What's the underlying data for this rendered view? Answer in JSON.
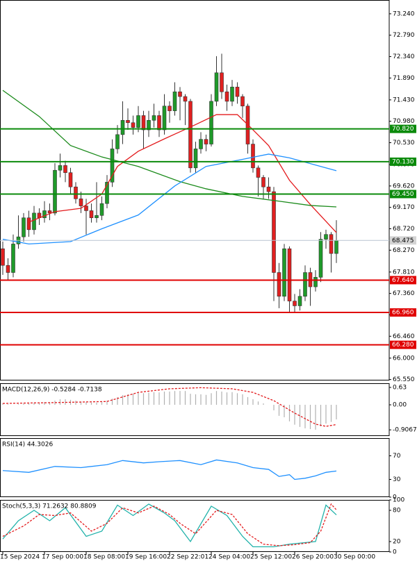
{
  "chart_data": [
    {
      "type": "candlestick",
      "open": [
        68.3,
        67.95,
        67.8,
        68.4,
        68.55,
        68.95,
        68.7,
        69.05,
        68.95,
        69.1,
        69.05,
        69.95,
        70.05,
        69.9,
        69.6,
        69.35,
        69.2,
        69.1,
        68.95,
        69.0,
        69.25,
        69.7,
        70.4,
        70.7,
        71.0,
        70.95,
        70.85,
        71.1,
        70.8,
        71.0,
        71.1,
        70.8,
        71.3,
        71.2,
        71.6,
        71.5,
        71.4,
        70.0,
        70.4,
        70.6,
        70.5,
        71.4,
        72.0,
        71.6,
        71.4,
        71.7,
        71.5,
        71.3,
        70.5,
        70.0,
        69.8,
        69.6,
        69.5,
        67.8,
        67.3,
        68.3,
        67.2,
        67.1,
        67.3,
        67.8,
        67.5,
        67.7,
        68.5,
        68.6,
        68.2
      ],
      "high": [
        68.45,
        68.1,
        68.6,
        69.0,
        69.05,
        69.1,
        69.2,
        69.15,
        69.3,
        69.25,
        70.1,
        70.3,
        70.15,
        70.0,
        69.7,
        69.5,
        69.35,
        69.25,
        69.7,
        69.4,
        69.85,
        70.6,
        70.9,
        71.4,
        71.25,
        71.1,
        71.3,
        71.2,
        71.2,
        71.35,
        71.2,
        71.55,
        71.4,
        71.8,
        71.7,
        71.55,
        71.45,
        70.55,
        70.75,
        70.7,
        71.55,
        72.35,
        72.4,
        71.75,
        71.85,
        71.8,
        71.55,
        71.35,
        70.6,
        70.05,
        69.85,
        69.8,
        69.6,
        68.0,
        68.4,
        68.35,
        67.35,
        67.45,
        67.95,
        67.9,
        67.85,
        68.65,
        68.7,
        68.65,
        68.9
      ],
      "low": [
        67.75,
        67.65,
        67.7,
        68.3,
        68.45,
        68.55,
        68.6,
        68.8,
        68.85,
        68.9,
        69.0,
        69.8,
        69.7,
        69.45,
        69.25,
        69.05,
        68.6,
        68.85,
        68.85,
        68.9,
        69.15,
        69.6,
        70.3,
        70.5,
        70.8,
        70.7,
        70.75,
        70.4,
        70.65,
        70.85,
        70.65,
        70.7,
        70.95,
        71.1,
        71.0,
        70.9,
        69.9,
        69.9,
        70.3,
        70.35,
        70.45,
        71.3,
        71.45,
        71.2,
        71.3,
        71.35,
        71.05,
        70.3,
        69.9,
        69.4,
        69.35,
        69.35,
        67.2,
        67.05,
        67.2,
        66.95,
        66.95,
        67.0,
        67.2,
        67.1,
        67.4,
        67.6,
        68.3,
        67.8,
        68.0
      ],
      "close": [
        67.95,
        67.8,
        68.4,
        68.55,
        68.95,
        68.7,
        69.05,
        68.95,
        69.1,
        69.05,
        69.95,
        70.05,
        69.9,
        69.6,
        69.35,
        69.2,
        69.1,
        68.95,
        69.0,
        69.25,
        69.7,
        70.4,
        70.7,
        71.0,
        70.95,
        70.85,
        71.1,
        70.8,
        71.0,
        71.1,
        70.8,
        71.3,
        71.2,
        71.6,
        71.5,
        71.4,
        70.0,
        70.4,
        70.6,
        70.5,
        71.4,
        72.0,
        71.6,
        71.4,
        71.7,
        71.5,
        71.3,
        70.5,
        70.0,
        69.8,
        69.6,
        69.5,
        67.8,
        67.3,
        68.3,
        67.2,
        67.1,
        67.3,
        67.8,
        67.5,
        67.7,
        68.5,
        68.6,
        68.2,
        68.475
      ],
      "up_color": "#1f9a2a",
      "down_color": "#e02020",
      "series": [
        {
          "color": "#e31a1c",
          "x": [
            5,
            10,
            15,
            19,
            22,
            26,
            31,
            37,
            41,
            45,
            47,
            51,
            55,
            59,
            64
          ],
          "values": [
            68.86,
            69.08,
            69.15,
            69.45,
            70.03,
            70.35,
            70.61,
            70.91,
            71.12,
            71.12,
            70.91,
            70.47,
            69.74,
            69.23,
            68.64
          ]
        },
        {
          "color": "#1a8a1a",
          "x": [
            0,
            7,
            13,
            19,
            26,
            34,
            39,
            46,
            53,
            59,
            64
          ],
          "values": [
            71.63,
            71.08,
            70.47,
            70.23,
            70.03,
            69.71,
            69.56,
            69.4,
            69.3,
            69.21,
            69.18
          ]
        },
        {
          "color": "#1e90ff",
          "x": [
            0,
            5,
            13,
            19,
            26,
            33,
            39,
            46,
            51,
            55,
            61,
            64
          ],
          "values": [
            68.5,
            68.4,
            68.45,
            68.72,
            69.01,
            69.62,
            70.03,
            70.18,
            70.29,
            70.21,
            70.03,
            69.94
          ]
        }
      ],
      "levels": [
        {
          "value": 70.82,
          "label": "70.820",
          "color": "#0a8a0a"
        },
        {
          "value": 70.13,
          "label": "70.130",
          "color": "#0a8a0a"
        },
        {
          "value": 69.45,
          "label": "69.450",
          "color": "#0a8a0a"
        },
        {
          "value": 67.64,
          "label": "67.640",
          "color": "#e00000"
        },
        {
          "value": 66.96,
          "label": "66.960",
          "color": "#e00000"
        },
        {
          "value": 66.28,
          "label": "66.280",
          "color": "#e00000"
        }
      ],
      "last_price": {
        "value": 68.475,
        "label": "68.475"
      },
      "ylim": [
        65.53,
        73.53
      ],
      "yticks": [
        {
          "value": 73.24,
          "label": "73.240"
        },
        {
          "value": 72.79,
          "label": "72.790"
        },
        {
          "value": 72.34,
          "label": "72.340"
        },
        {
          "value": 71.89,
          "label": "71.890"
        },
        {
          "value": 71.43,
          "label": "71.430"
        },
        {
          "value": 70.98,
          "label": "70.980"
        },
        {
          "value": 70.53,
          "label": "70.530"
        },
        {
          "value": 70.07,
          "label": "70.070"
        },
        {
          "value": 69.62,
          "label": "69.620"
        },
        {
          "value": 69.17,
          "label": "69.170"
        },
        {
          "value": 68.72,
          "label": "68.720"
        },
        {
          "value": 68.27,
          "label": "68.270"
        },
        {
          "value": 67.81,
          "label": "67.810"
        },
        {
          "value": 67.36,
          "label": "67.360"
        },
        {
          "value": 66.91,
          "label": "66.910"
        },
        {
          "value": 66.46,
          "label": "66.460"
        },
        {
          "value": 66.0,
          "label": "66.000"
        },
        {
          "value": 65.55,
          "label": "65.550"
        }
      ],
      "xticks": [
        {
          "value": 0,
          "label": "15 Sep 2024"
        },
        {
          "value": 8,
          "label": "17 Sep 00:00"
        },
        {
          "value": 16,
          "label": "18 Sep 08:00"
        },
        {
          "value": 24,
          "label": "19 Sep 16:00"
        },
        {
          "value": 32,
          "label": "22 Sep 22:01"
        },
        {
          "value": 40,
          "label": "24 Sep 04:00"
        },
        {
          "value": 48,
          "label": "25 Sep 12:00"
        },
        {
          "value": 56,
          "label": "26 Sep 20:00"
        },
        {
          "value": 64,
          "label": "30 Sep 00:00"
        }
      ]
    },
    {
      "type": "bar",
      "title": "MACD(12,26,9) -0.5284 -0.7138",
      "color": "#b0b0b0",
      "values": [
        0.05,
        0.02,
        0.0,
        0.02,
        0.05,
        0.05,
        0.08,
        0.08,
        0.1,
        0.1,
        0.15,
        0.2,
        0.2,
        0.18,
        0.15,
        0.12,
        0.1,
        0.08,
        0.08,
        0.1,
        0.15,
        0.22,
        0.28,
        0.35,
        0.38,
        0.4,
        0.43,
        0.42,
        0.44,
        0.46,
        0.45,
        0.48,
        0.48,
        0.5,
        0.5,
        0.5,
        0.4,
        0.38,
        0.38,
        0.36,
        0.42,
        0.5,
        0.48,
        0.45,
        0.46,
        0.42,
        0.38,
        0.28,
        0.2,
        0.12,
        0.05,
        0.0,
        -0.2,
        -0.4,
        -0.45,
        -0.6,
        -0.72,
        -0.8,
        -0.85,
        -0.88,
        -0.9,
        -0.78,
        -0.68,
        -0.62,
        -0.5284
      ],
      "series": [
        {
          "color": "#e31a1c",
          "line_style": "dashed",
          "x": [
            0,
            10,
            20,
            26,
            32,
            38,
            44,
            48,
            52,
            56,
            60,
            62,
            64
          ],
          "values": [
            0.05,
            0.08,
            0.12,
            0.45,
            0.58,
            0.62,
            0.58,
            0.45,
            0.15,
            -0.3,
            -0.7,
            -0.78,
            -0.7138
          ]
        }
      ],
      "ylim": [
        -1.13,
        0.78
      ],
      "yticks": [
        0.63,
        {
          "value": 0,
          "label": "0.00"
        },
        -0.9067
      ]
    },
    {
      "type": "line",
      "title": "RSI(14) 44.3026",
      "series": [
        {
          "color": "#1e90ff",
          "line_style": "solid",
          "x": [
            0,
            5,
            10,
            15,
            20,
            23,
            27,
            30,
            34,
            38,
            41,
            45,
            48,
            51,
            53,
            55,
            56,
            58,
            60,
            62,
            64
          ],
          "values": [
            45,
            42,
            52,
            50,
            55,
            62,
            58,
            60,
            62,
            55,
            63,
            58,
            50,
            47,
            35,
            38,
            30,
            32,
            36,
            42,
            44.3026
          ]
        }
      ],
      "ylim": [
        0,
        100
      ],
      "yticks": [
        70,
        30,
        0
      ]
    },
    {
      "type": "line",
      "title": "Stoch(5,3,3) 71.2632 80.8809",
      "series": [
        {
          "color": "#20b2aa",
          "line_style": "solid",
          "x": [
            0,
            3,
            6,
            9,
            12,
            16,
            19,
            22,
            25,
            28,
            31,
            33,
            36,
            40,
            43,
            46,
            48,
            52,
            55,
            58,
            60,
            62,
            64
          ],
          "values": [
            25,
            60,
            80,
            60,
            85,
            30,
            40,
            90,
            70,
            92,
            75,
            60,
            20,
            88,
            70,
            30,
            10,
            10,
            15,
            18,
            20,
            90,
            71.2632
          ]
        },
        {
          "color": "#e31a1c",
          "line_style": "dashed",
          "x": [
            0,
            4,
            7,
            10,
            13,
            17,
            20,
            23,
            26,
            29,
            32,
            34,
            37,
            41,
            44,
            47,
            50,
            53,
            56,
            59,
            61,
            63,
            64
          ],
          "values": [
            30,
            50,
            72,
            70,
            75,
            40,
            55,
            85,
            75,
            88,
            72,
            55,
            35,
            80,
            72,
            35,
            15,
            12,
            14,
            18,
            40,
            92,
            80.8809
          ]
        }
      ],
      "ylim": [
        0,
        100
      ],
      "yticks": [
        100,
        80,
        20,
        0
      ]
    }
  ]
}
